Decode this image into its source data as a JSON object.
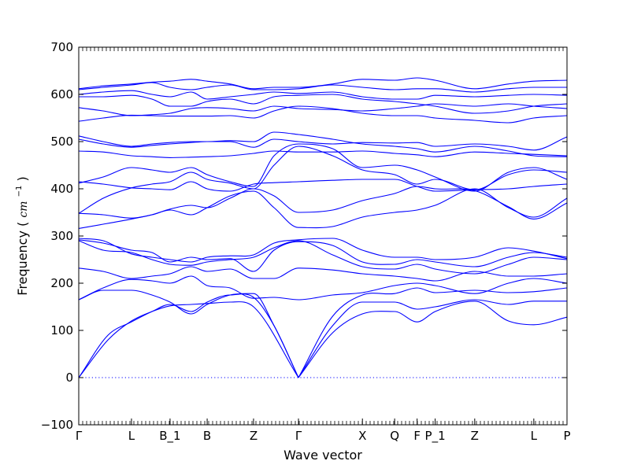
{
  "chart_data": {
    "type": "line",
    "title": "",
    "xlabel": "Wave vector",
    "ylabel": "Frequency",
    "ylabel_unit": "cm",
    "ylabel_unit_exp": "−1",
    "ylim": [
      -100,
      700
    ],
    "y_ticks": [
      "−100",
      "0",
      "100",
      "200",
      "300",
      "400",
      "500",
      "600",
      "700"
    ],
    "x_points": [
      {
        "label": "Γ",
        "pos": 0
      },
      {
        "label": "L",
        "pos": 0.108
      },
      {
        "label": "B_1",
        "pos": 0.187
      },
      {
        "label": "B",
        "pos": 0.263
      },
      {
        "label": "Z",
        "pos": 0.358
      },
      {
        "label": "Γ",
        "pos": 0.45
      },
      {
        "label": "X",
        "pos": 0.581
      },
      {
        "label": "Q",
        "pos": 0.647
      },
      {
        "label": "F",
        "pos": 0.693
      },
      {
        "label": "P_1",
        "pos": 0.73
      },
      {
        "label": "Z",
        "pos": 0.811
      },
      {
        "label": "L",
        "pos": 0.932
      },
      {
        "label": "P",
        "pos": 1.0
      }
    ],
    "grid": false,
    "legend": "none",
    "colors": {
      "band": "#0000ff",
      "frame": "#000000",
      "zero_line": "#0000ff"
    },
    "zero_line": 0,
    "series": [
      {
        "x": [
          0,
          0.06,
          0.108,
          0.15,
          0.187,
          0.23,
          0.263,
          0.31,
          0.358,
          0.45
        ],
        "y": [
          0,
          80,
          120,
          140,
          152,
          155,
          157,
          160,
          150,
          0
        ]
      },
      {
        "x": [
          0,
          0.06,
          0.108,
          0.15,
          0.187,
          0.23,
          0.263,
          0.31,
          0.358,
          0.4,
          0.45
        ],
        "y": [
          0,
          90,
          118,
          140,
          155,
          140,
          160,
          175,
          170,
          110,
          0
        ]
      },
      {
        "x": [
          0,
          0.05,
          0.108,
          0.15,
          0.187,
          0.23,
          0.263,
          0.31,
          0.358,
          0.4,
          0.45
        ],
        "y": [
          165,
          185,
          185,
          175,
          160,
          135,
          155,
          175,
          178,
          110,
          0
        ]
      },
      {
        "x": [
          0.45,
          0.52,
          0.581,
          0.647,
          0.693,
          0.73,
          0.811,
          0.88,
          0.932,
          1.0
        ],
        "y": [
          0,
          95,
          135,
          140,
          118,
          140,
          162,
          120,
          112,
          128
        ]
      },
      {
        "x": [
          0.45,
          0.52,
          0.581,
          0.647,
          0.693,
          0.73,
          0.811,
          0.88,
          0.932,
          1.0
        ],
        "y": [
          0,
          110,
          160,
          160,
          145,
          150,
          165,
          155,
          162,
          162
        ]
      },
      {
        "x": [
          0.45,
          0.52,
          0.581,
          0.647,
          0.693,
          0.73,
          0.811,
          0.88,
          0.932,
          1.0
        ],
        "y": [
          0,
          130,
          175,
          178,
          190,
          180,
          185,
          180,
          182,
          190
        ]
      },
      {
        "x": [
          0,
          0.05,
          0.108,
          0.15,
          0.187,
          0.23,
          0.263,
          0.31,
          0.358,
          0.4,
          0.45,
          0.52,
          0.581,
          0.647,
          0.693,
          0.73,
          0.811,
          0.88,
          0.932,
          1.0
        ],
        "y": [
          165,
          190,
          208,
          205,
          200,
          215,
          195,
          190,
          168,
          170,
          165,
          175,
          180,
          195,
          200,
          195,
          178,
          200,
          210,
          200
        ]
      },
      {
        "x": [
          0,
          0.05,
          0.108,
          0.15,
          0.187,
          0.23,
          0.263,
          0.31,
          0.358,
          0.4,
          0.45,
          0.52,
          0.581,
          0.647,
          0.693,
          0.73,
          0.811,
          0.88,
          0.932,
          1.0
        ],
        "y": [
          232,
          225,
          210,
          215,
          220,
          235,
          225,
          230,
          210,
          210,
          232,
          228,
          220,
          215,
          210,
          205,
          225,
          215,
          215,
          220
        ]
      },
      {
        "x": [
          0,
          0.05,
          0.108,
          0.15,
          0.187,
          0.23,
          0.263,
          0.31,
          0.358,
          0.4,
          0.45,
          0.52,
          0.581,
          0.647,
          0.693,
          0.73,
          0.811,
          0.88,
          0.932,
          1.0
        ],
        "y": [
          290,
          270,
          265,
          250,
          240,
          238,
          245,
          250,
          255,
          275,
          290,
          260,
          235,
          230,
          240,
          230,
          220,
          240,
          255,
          250
        ]
      },
      {
        "x": [
          0,
          0.05,
          0.108,
          0.15,
          0.187,
          0.23,
          0.263,
          0.31,
          0.358,
          0.4,
          0.45,
          0.52,
          0.581,
          0.647,
          0.693,
          0.73,
          0.811,
          0.88,
          0.932,
          1.0
        ],
        "y": [
          292,
          285,
          270,
          265,
          245,
          255,
          250,
          252,
          225,
          270,
          288,
          280,
          245,
          240,
          250,
          245,
          235,
          255,
          265,
          255
        ]
      },
      {
        "x": [
          0,
          0.05,
          0.108,
          0.15,
          0.187,
          0.23,
          0.263,
          0.31,
          0.358,
          0.4,
          0.45,
          0.52,
          0.581,
          0.647,
          0.693,
          0.73,
          0.811,
          0.88,
          0.932,
          1.0
        ],
        "y": [
          295,
          290,
          262,
          255,
          250,
          245,
          255,
          258,
          260,
          285,
          292,
          295,
          270,
          255,
          255,
          250,
          255,
          275,
          268,
          252
        ]
      },
      {
        "x": [
          0,
          0.05,
          0.108,
          0.15,
          0.187,
          0.23,
          0.263,
          0.31,
          0.358,
          0.4,
          0.45,
          0.52,
          0.581,
          0.647,
          0.693,
          0.73,
          0.811,
          0.88,
          0.932,
          1.0
        ],
        "y": [
          316,
          325,
          336,
          345,
          357,
          365,
          360,
          380,
          400,
          385,
          350,
          355,
          375,
          390,
          405,
          400,
          396,
          362,
          336,
          370
        ]
      },
      {
        "x": [
          0,
          0.05,
          0.108,
          0.15,
          0.187,
          0.23,
          0.263,
          0.31,
          0.358,
          0.4,
          0.45,
          0.52,
          0.581,
          0.647,
          0.693,
          0.73,
          0.811,
          0.88,
          0.932,
          1.0
        ],
        "y": [
          348,
          345,
          338,
          345,
          355,
          345,
          360,
          385,
          395,
          360,
          318,
          320,
          340,
          350,
          355,
          365,
          400,
          360,
          340,
          380
        ]
      },
      {
        "x": [
          0,
          0.05,
          0.108,
          0.15,
          0.187,
          0.23,
          0.263,
          0.31,
          0.358,
          0.4,
          0.45,
          0.52,
          0.581,
          0.647,
          0.693,
          0.73,
          0.811,
          0.88,
          0.932,
          1.0
        ],
        "y": [
          415,
          410,
          402,
          400,
          398,
          415,
          400,
          395,
          410,
          413,
          415,
          418,
          420,
          420,
          405,
          395,
          398,
          400,
          405,
          410
        ]
      },
      {
        "x": [
          0,
          0.05,
          0.108,
          0.15,
          0.187,
          0.23,
          0.263,
          0.31,
          0.358,
          0.4,
          0.45,
          0.52,
          0.581,
          0.647,
          0.693,
          0.73,
          0.811,
          0.88,
          0.932,
          1.0
        ],
        "y": [
          348,
          380,
          402,
          410,
          415,
          435,
          420,
          412,
          400,
          450,
          490,
          470,
          440,
          430,
          410,
          420,
          398,
          430,
          440,
          435
        ]
      },
      {
        "x": [
          0,
          0.05,
          0.108,
          0.15,
          0.187,
          0.23,
          0.263,
          0.31,
          0.358,
          0.4,
          0.45,
          0.52,
          0.581,
          0.647,
          0.693,
          0.73,
          0.811,
          0.88,
          0.932,
          1.0
        ],
        "y": [
          412,
          425,
          445,
          440,
          435,
          445,
          430,
          415,
          405,
          470,
          495,
          485,
          445,
          450,
          440,
          425,
          395,
          435,
          445,
          420
        ]
      },
      {
        "x": [
          0,
          0.05,
          0.108,
          0.15,
          0.187,
          0.23,
          0.263,
          0.31,
          0.358,
          0.4,
          0.45,
          0.52,
          0.581,
          0.647,
          0.693,
          0.73,
          0.811,
          0.88,
          0.932,
          1.0
        ],
        "y": [
          480,
          478,
          470,
          468,
          466,
          467,
          468,
          470,
          475,
          480,
          478,
          478,
          480,
          475,
          472,
          468,
          478,
          475,
          473,
          470
        ]
      },
      {
        "x": [
          0,
          0.05,
          0.108,
          0.15,
          0.187,
          0.23,
          0.263,
          0.31,
          0.358,
          0.4,
          0.45,
          0.52,
          0.581,
          0.647,
          0.693,
          0.73,
          0.811,
          0.88,
          0.932,
          1.0
        ],
        "y": [
          505,
          495,
          488,
          492,
          495,
          498,
          500,
          500,
          488,
          505,
          500,
          495,
          498,
          497,
          498,
          490,
          495,
          490,
          482,
          510
        ]
      },
      {
        "x": [
          0,
          0.05,
          0.108,
          0.15,
          0.187,
          0.23,
          0.263,
          0.31,
          0.358,
          0.4,
          0.45,
          0.52,
          0.581,
          0.647,
          0.693,
          0.73,
          0.811,
          0.88,
          0.932,
          1.0
        ],
        "y": [
          512,
          500,
          490,
          495,
          498,
          500,
          500,
          502,
          500,
          520,
          515,
          505,
          495,
          490,
          485,
          478,
          490,
          480,
          470,
          468
        ]
      },
      {
        "x": [
          0,
          0.05,
          0.108,
          0.15,
          0.187,
          0.23,
          0.263,
          0.31,
          0.358,
          0.4,
          0.45,
          0.52,
          0.581,
          0.647,
          0.693,
          0.73,
          0.811,
          0.88,
          0.932,
          1.0
        ],
        "y": [
          543,
          550,
          556,
          555,
          554,
          554,
          554,
          555,
          550,
          565,
          575,
          570,
          560,
          555,
          555,
          550,
          545,
          540,
          550,
          555
        ]
      },
      {
        "x": [
          0,
          0.05,
          0.108,
          0.15,
          0.187,
          0.23,
          0.263,
          0.31,
          0.358,
          0.4,
          0.45,
          0.52,
          0.581,
          0.647,
          0.693,
          0.73,
          0.811,
          0.88,
          0.932,
          1.0
        ],
        "y": [
          572,
          565,
          555,
          557,
          560,
          570,
          572,
          570,
          565,
          575,
          570,
          568,
          565,
          570,
          575,
          580,
          575,
          580,
          575,
          570
        ]
      },
      {
        "x": [
          0,
          0.05,
          0.108,
          0.15,
          0.187,
          0.23,
          0.263,
          0.31,
          0.358,
          0.4,
          0.45,
          0.52,
          0.581,
          0.647,
          0.693,
          0.73,
          0.811,
          0.88,
          0.932,
          1.0
        ],
        "y": [
          595,
          595,
          598,
          590,
          575,
          575,
          585,
          590,
          580,
          595,
          598,
          600,
          590,
          585,
          580,
          575,
          560,
          565,
          575,
          580
        ]
      },
      {
        "x": [
          0,
          0.05,
          0.108,
          0.15,
          0.187,
          0.23,
          0.263,
          0.31,
          0.358,
          0.4,
          0.45,
          0.52,
          0.581,
          0.647,
          0.693,
          0.73,
          0.811,
          0.88,
          0.932,
          1.0
        ],
        "y": [
          600,
          605,
          608,
          600,
          595,
          605,
          590,
          595,
          600,
          605,
          602,
          605,
          595,
          590,
          590,
          598,
          595,
          598,
          600,
          598
        ]
      },
      {
        "x": [
          0,
          0.05,
          0.108,
          0.15,
          0.187,
          0.23,
          0.263,
          0.31,
          0.358,
          0.4,
          0.45,
          0.52,
          0.581,
          0.647,
          0.693,
          0.73,
          0.811,
          0.88,
          0.932,
          1.0
        ],
        "y": [
          610,
          615,
          620,
          625,
          615,
          610,
          615,
          620,
          610,
          610,
          612,
          620,
          615,
          610,
          612,
          612,
          605,
          612,
          615,
          615
        ]
      },
      {
        "x": [
          0,
          0.05,
          0.108,
          0.15,
          0.187,
          0.23,
          0.263,
          0.31,
          0.358,
          0.4,
          0.45,
          0.52,
          0.581,
          0.647,
          0.693,
          0.73,
          0.811,
          0.88,
          0.932,
          1.0
        ],
        "y": [
          612,
          618,
          622,
          626,
          628,
          632,
          628,
          622,
          612,
          615,
          615,
          622,
          632,
          630,
          635,
          630,
          612,
          622,
          628,
          630
        ]
      }
    ]
  }
}
